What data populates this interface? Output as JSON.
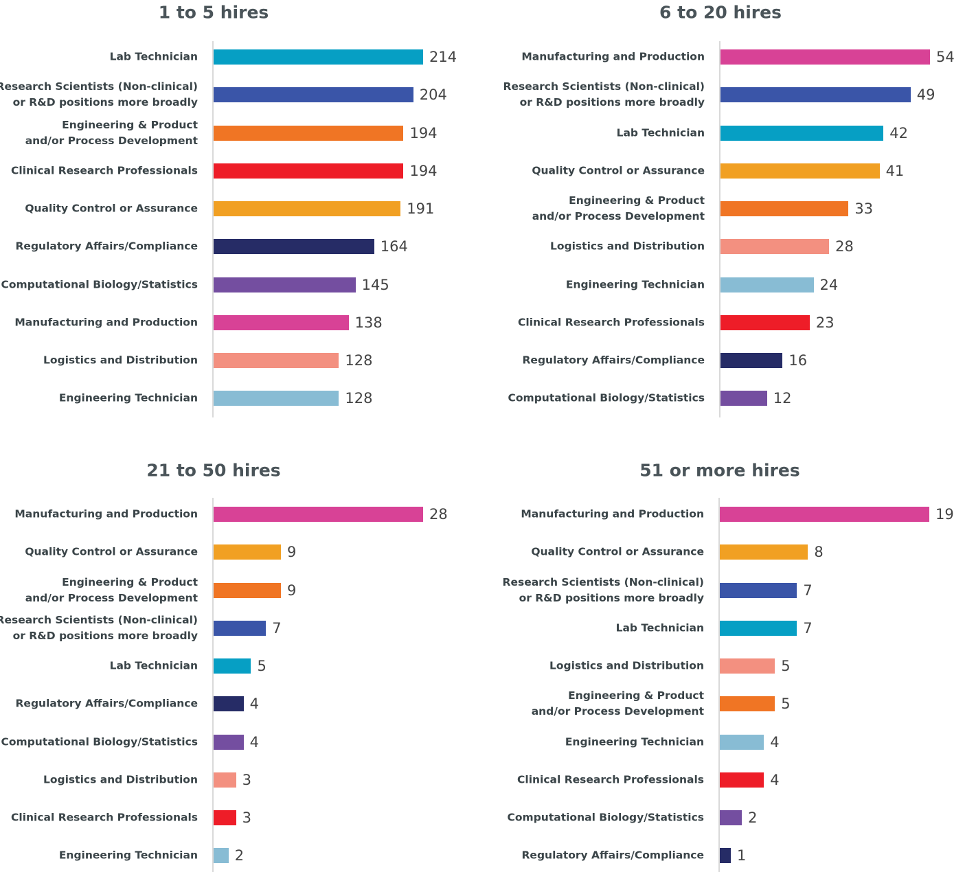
{
  "chart_data": [
    {
      "type": "bar",
      "orientation": "horizontal",
      "title": "1 to 5 hires",
      "categories": [
        "Lab Technician",
        "Research Scientists (Non-clinical)\nor R&D positions more broadly",
        "Engineering & Product\nand/or Process Development",
        "Clinical Research Professionals",
        "Quality Control or Assurance",
        "Regulatory Affairs/Compliance",
        "Computational Biology/Statistics",
        "Manufacturing and Production",
        "Logistics and Distribution",
        "Engineering Technician"
      ],
      "values": [
        214,
        204,
        194,
        194,
        191,
        164,
        145,
        138,
        128,
        128
      ],
      "colors": [
        "#069fc4",
        "#3a55a8",
        "#f07524",
        "#ee1d28",
        "#f1a023",
        "#262c66",
        "#744ea0",
        "#d84296",
        "#f39080",
        "#88bcd4"
      ]
    },
    {
      "type": "bar",
      "orientation": "horizontal",
      "title": "6 to 20 hires",
      "categories": [
        "Manufacturing and Production",
        "Research Scientists (Non-clinical)\nor R&D positions more broadly",
        "Lab Technician",
        "Quality Control or Assurance",
        "Engineering & Product\nand/or Process Development",
        "Logistics and Distribution",
        "Engineering Technician",
        "Clinical Research Professionals",
        "Regulatory Affairs/Compliance",
        "Computational Biology/Statistics"
      ],
      "values": [
        54,
        49,
        42,
        41,
        33,
        28,
        24,
        23,
        16,
        12
      ],
      "colors": [
        "#d84296",
        "#3a55a8",
        "#069fc4",
        "#f1a023",
        "#f07524",
        "#f39080",
        "#88bcd4",
        "#ee1d28",
        "#262c66",
        "#744ea0"
      ]
    },
    {
      "type": "bar",
      "orientation": "horizontal",
      "title": "21 to 50 hires",
      "categories": [
        "Manufacturing and Production",
        "Quality Control or Assurance",
        "Engineering & Product\nand/or Process Development",
        "Research Scientists (Non-clinical)\nor R&D positions more broadly",
        "Lab Technician",
        "Regulatory Affairs/Compliance",
        "Computational Biology/Statistics",
        "Logistics and Distribution",
        "Clinical Research Professionals",
        "Engineering Technician"
      ],
      "values": [
        28,
        9,
        9,
        7,
        5,
        4,
        4,
        3,
        3,
        2
      ],
      "colors": [
        "#d84296",
        "#f1a023",
        "#f07524",
        "#3a55a8",
        "#069fc4",
        "#262c66",
        "#744ea0",
        "#f39080",
        "#ee1d28",
        "#88bcd4"
      ]
    },
    {
      "type": "bar",
      "orientation": "horizontal",
      "title": "51 or more hires",
      "categories": [
        "Manufacturing and Production",
        "Quality Control or Assurance",
        "Research Scientists (Non-clinical)\nor R&D positions more broadly",
        "Lab Technician",
        "Logistics and Distribution",
        "Engineering & Product\nand/or Process Development",
        "Engineering Technician",
        "Clinical Research Professionals",
        "Computational Biology/Statistics",
        "Regulatory Affairs/Compliance"
      ],
      "values": [
        19,
        8,
        7,
        7,
        5,
        5,
        4,
        4,
        2,
        1
      ],
      "colors": [
        "#d84296",
        "#f1a023",
        "#3a55a8",
        "#069fc4",
        "#f39080",
        "#f07524",
        "#88bcd4",
        "#ee1d28",
        "#744ea0",
        "#262c66"
      ]
    }
  ]
}
